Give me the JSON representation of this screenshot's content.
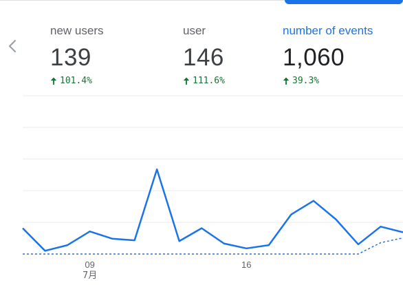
{
  "metrics": [
    {
      "label": "new users",
      "value": "139",
      "change": "101.4%",
      "direction": "up"
    },
    {
      "label": "user",
      "value": "146",
      "change": "111.6%",
      "direction": "up"
    },
    {
      "label": "number of events",
      "value": "1,060",
      "change": "39.3%",
      "direction": "up",
      "active": true
    }
  ],
  "colors": {
    "accent": "#1a73e8",
    "positive": "#137333",
    "gridline": "#e8eaed",
    "text_secondary": "#5f6368"
  },
  "icons": {
    "prev": "chevron-left-icon",
    "delta": "arrow-up-icon"
  },
  "chart_data": {
    "type": "line",
    "x_tick_labels": [
      {
        "label": "09",
        "sublabel": "7月",
        "index": 3
      },
      {
        "label": "16",
        "index": 10
      }
    ],
    "grid": true,
    "series": [
      {
        "style": "solid",
        "values": [
          32,
          4,
          11,
          28,
          19,
          17,
          105,
          16,
          32,
          13,
          7,
          11,
          49,
          66,
          43,
          12,
          34,
          27
        ]
      },
      {
        "style": "dashed",
        "values": [
          0,
          0,
          0,
          0,
          0,
          0,
          0,
          0,
          0,
          0,
          0,
          0,
          0,
          0,
          0,
          0,
          14,
          20
        ]
      }
    ]
  }
}
